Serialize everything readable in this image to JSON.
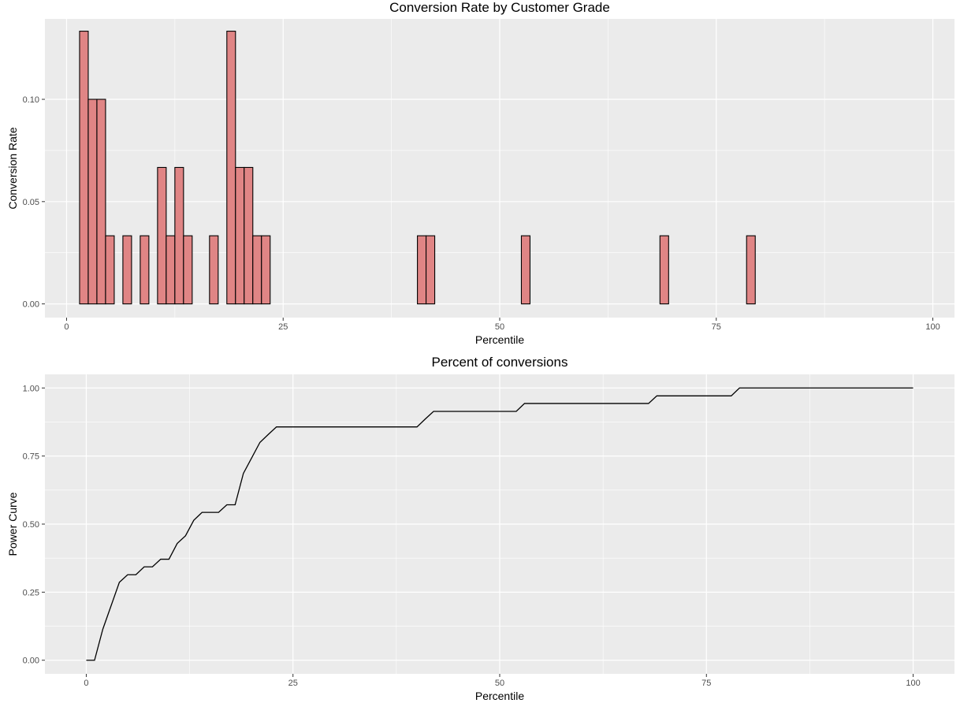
{
  "chart_data": [
    {
      "type": "bar",
      "title": "Conversion Rate by Customer Grade",
      "xlabel": "Percentile",
      "ylabel": "Conversion Rate",
      "xlim": [
        -2.5,
        102.5
      ],
      "ylim": [
        -0.0067,
        0.1393
      ],
      "xticks": [
        0,
        25,
        50,
        75,
        100
      ],
      "yticks": [
        0.0,
        0.05,
        0.1
      ],
      "ytick_labels": [
        "0.00",
        "0.05",
        "0.10"
      ],
      "grid": true,
      "legend": "none",
      "colors": {
        "panel": "#ebebeb",
        "grid": "#ffffff",
        "bar_fill": "#e08585",
        "bar_stroke": "#000000"
      },
      "x": [
        0,
        1,
        2,
        3,
        4,
        5,
        6,
        7,
        8,
        9,
        10,
        11,
        12,
        13,
        14,
        15,
        16,
        17,
        18,
        19,
        20,
        21,
        22,
        23,
        24,
        25,
        26,
        27,
        28,
        29,
        30,
        31,
        32,
        33,
        34,
        35,
        36,
        37,
        38,
        39,
        40,
        41,
        42,
        43,
        44,
        45,
        46,
        47,
        48,
        49,
        50,
        51,
        52,
        53,
        54,
        55,
        56,
        57,
        58,
        59,
        60,
        61,
        62,
        63,
        64,
        65,
        66,
        67,
        68,
        69,
        70,
        71,
        72,
        73,
        74,
        75,
        76,
        77,
        78,
        79,
        80,
        81,
        82,
        83,
        84,
        85,
        86,
        87,
        88,
        89,
        90,
        91,
        92,
        93,
        94,
        95,
        96,
        97,
        98,
        99,
        100
      ],
      "values": [
        0,
        0,
        0.1333,
        0.1,
        0.1,
        0.0333,
        0,
        0.0333,
        0,
        0.0333,
        0,
        0.0667,
        0.0333,
        0.0667,
        0.0333,
        0,
        0,
        0.0333,
        0,
        0.1333,
        0.0667,
        0.0667,
        0.0333,
        0.0333,
        0,
        0,
        0,
        0,
        0,
        0,
        0,
        0,
        0,
        0,
        0,
        0,
        0,
        0,
        0,
        0,
        0,
        0.0333,
        0.0333,
        0,
        0,
        0,
        0,
        0,
        0,
        0,
        0,
        0,
        0,
        0.0333,
        0,
        0,
        0,
        0,
        0,
        0,
        0,
        0,
        0,
        0,
        0,
        0,
        0,
        0,
        0,
        0.0333,
        0,
        0,
        0,
        0,
        0,
        0,
        0,
        0,
        0,
        0.0333,
        0,
        0,
        0,
        0,
        0,
        0,
        0,
        0,
        0,
        0,
        0,
        0,
        0,
        0,
        0,
        0,
        0,
        0,
        0,
        0,
        0
      ]
    },
    {
      "type": "line",
      "title": "Percent of conversions",
      "xlabel": "Percentile",
      "ylabel": "Power Curve",
      "xlim": [
        -5,
        105
      ],
      "ylim": [
        -0.05,
        1.05
      ],
      "xticks": [
        0,
        25,
        50,
        75,
        100
      ],
      "yticks": [
        0.0,
        0.25,
        0.5,
        0.75,
        1.0
      ],
      "ytick_labels": [
        "0.00",
        "0.25",
        "0.50",
        "0.75",
        "1.00"
      ],
      "grid": true,
      "legend": "none",
      "colors": {
        "panel": "#ebebeb",
        "grid": "#ffffff",
        "line": "#000000"
      },
      "x": [
        0,
        1,
        2,
        3,
        4,
        5,
        6,
        7,
        8,
        9,
        10,
        11,
        12,
        13,
        14,
        15,
        16,
        17,
        18,
        19,
        20,
        21,
        22,
        23,
        40,
        41,
        42,
        52,
        53,
        68,
        69,
        78,
        79,
        100
      ],
      "values": [
        0,
        0,
        0.114,
        0.2,
        0.286,
        0.314,
        0.314,
        0.343,
        0.343,
        0.371,
        0.371,
        0.429,
        0.457,
        0.514,
        0.543,
        0.543,
        0.543,
        0.571,
        0.571,
        0.686,
        0.743,
        0.8,
        0.829,
        0.857,
        0.857,
        0.886,
        0.914,
        0.914,
        0.943,
        0.943,
        0.971,
        0.971,
        1.0,
        1.0
      ]
    }
  ]
}
